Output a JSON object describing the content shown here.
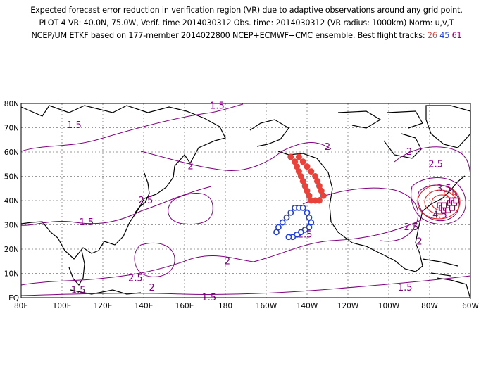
{
  "header": {
    "line1": "Expected forecast error reduction in verification region (VR) due to adaptive observations around any grid point.",
    "line2": "PLOT 4 VR: 40.0N, 75.0W, Verif. time 2014030312 Obs. time: 2014030312 (VR radius: 1000km) Norm: u,v,T",
    "line3_prefix": "NCEP/UM ETKF based on 177-member 2014022800 NCEP+ECMWF+CMC ensemble. Best flight tracks: ",
    "tracks": [
      {
        "id": "26",
        "color": "#e8423a"
      },
      {
        "id": "45",
        "color": "#1f3fd8"
      },
      {
        "id": "61",
        "color": "#8b0060"
      }
    ]
  },
  "map": {
    "lon_min": 80,
    "lon_max": 300,
    "lat_min": 0,
    "lat_max": 80,
    "grid": true,
    "lat_ticks": [
      "80N",
      "70N",
      "60N",
      "50N",
      "40N",
      "30N",
      "20N",
      "10N",
      "EQ"
    ],
    "lon_ticks": [
      "80E",
      "100E",
      "120E",
      "140E",
      "160E",
      "180",
      "160W",
      "140W",
      "120W",
      "100W",
      "80W",
      "60W"
    ],
    "contour_color": "#800080",
    "contour_labels": [
      {
        "text": "1.5",
        "lon": 106,
        "lat": 71
      },
      {
        "text": "1.5",
        "lon": 176,
        "lat": 79
      },
      {
        "text": "1.5",
        "lon": 112,
        "lat": 31
      },
      {
        "text": "1.5",
        "lon": 108,
        "lat": 3
      },
      {
        "text": "1.5",
        "lon": 172,
        "lat": 0
      },
      {
        "text": "1.5",
        "lon": 268,
        "lat": 4
      },
      {
        "text": "2",
        "lon": 163,
        "lat": 54
      },
      {
        "text": "2",
        "lon": 230,
        "lat": 62
      },
      {
        "text": "2",
        "lon": 181,
        "lat": 15
      },
      {
        "text": "2",
        "lon": 144,
        "lat": 4
      },
      {
        "text": "2",
        "lon": 275,
        "lat": 23
      },
      {
        "text": "2",
        "lon": 270,
        "lat": 60
      },
      {
        "text": "2.5",
        "lon": 141,
        "lat": 40
      },
      {
        "text": "2.5",
        "lon": 136,
        "lat": 8
      },
      {
        "text": "2.5",
        "lon": 219,
        "lat": 26
      },
      {
        "text": "2.5",
        "lon": 271,
        "lat": 29
      },
      {
        "text": "2.5",
        "lon": 283,
        "lat": 55
      },
      {
        "text": "3.5",
        "lon": 287,
        "lat": 45
      },
      {
        "text": "4.5",
        "lon": 285,
        "lat": 34
      },
      {
        "text": "5.5",
        "lon": 290,
        "lat": 42,
        "red": true
      }
    ],
    "tracks": [
      {
        "id": "26",
        "color": "#e8423a",
        "marker": "filled-circle",
        "points": [
          [
            212,
            58
          ],
          [
            214,
            56
          ],
          [
            215,
            54
          ],
          [
            216,
            52
          ],
          [
            217,
            50
          ],
          [
            218,
            48
          ],
          [
            219,
            46
          ],
          [
            220,
            44
          ],
          [
            221,
            42
          ],
          [
            222,
            40
          ],
          [
            224,
            40
          ],
          [
            226,
            40
          ],
          [
            228,
            42
          ],
          [
            227,
            44
          ],
          [
            226,
            46
          ],
          [
            225,
            48
          ],
          [
            224,
            50
          ],
          [
            222,
            52
          ],
          [
            220,
            54
          ],
          [
            218,
            56
          ],
          [
            216,
            58
          ]
        ]
      },
      {
        "id": "45",
        "color": "#1f3fd8",
        "marker": "open-circle",
        "points": [
          [
            205,
            27
          ],
          [
            206,
            29
          ],
          [
            208,
            31
          ],
          [
            210,
            33
          ],
          [
            212,
            35
          ],
          [
            214,
            37
          ],
          [
            216,
            37
          ],
          [
            218,
            37
          ],
          [
            220,
            35
          ],
          [
            221,
            33
          ],
          [
            222,
            31
          ],
          [
            221,
            29
          ],
          [
            219,
            28
          ],
          [
            217,
            27
          ],
          [
            215,
            26
          ],
          [
            213,
            25
          ],
          [
            211,
            25
          ]
        ]
      },
      {
        "id": "61",
        "color": "#8b0060",
        "marker": "open-square",
        "points": [
          [
            285,
            38
          ],
          [
            286,
            37
          ],
          [
            287,
            36
          ],
          [
            288,
            37
          ],
          [
            289,
            38
          ],
          [
            290,
            39
          ],
          [
            291,
            40
          ],
          [
            292,
            39
          ],
          [
            293,
            40
          ],
          [
            289,
            36
          ],
          [
            291,
            37
          ],
          [
            287,
            38
          ]
        ]
      }
    ]
  }
}
